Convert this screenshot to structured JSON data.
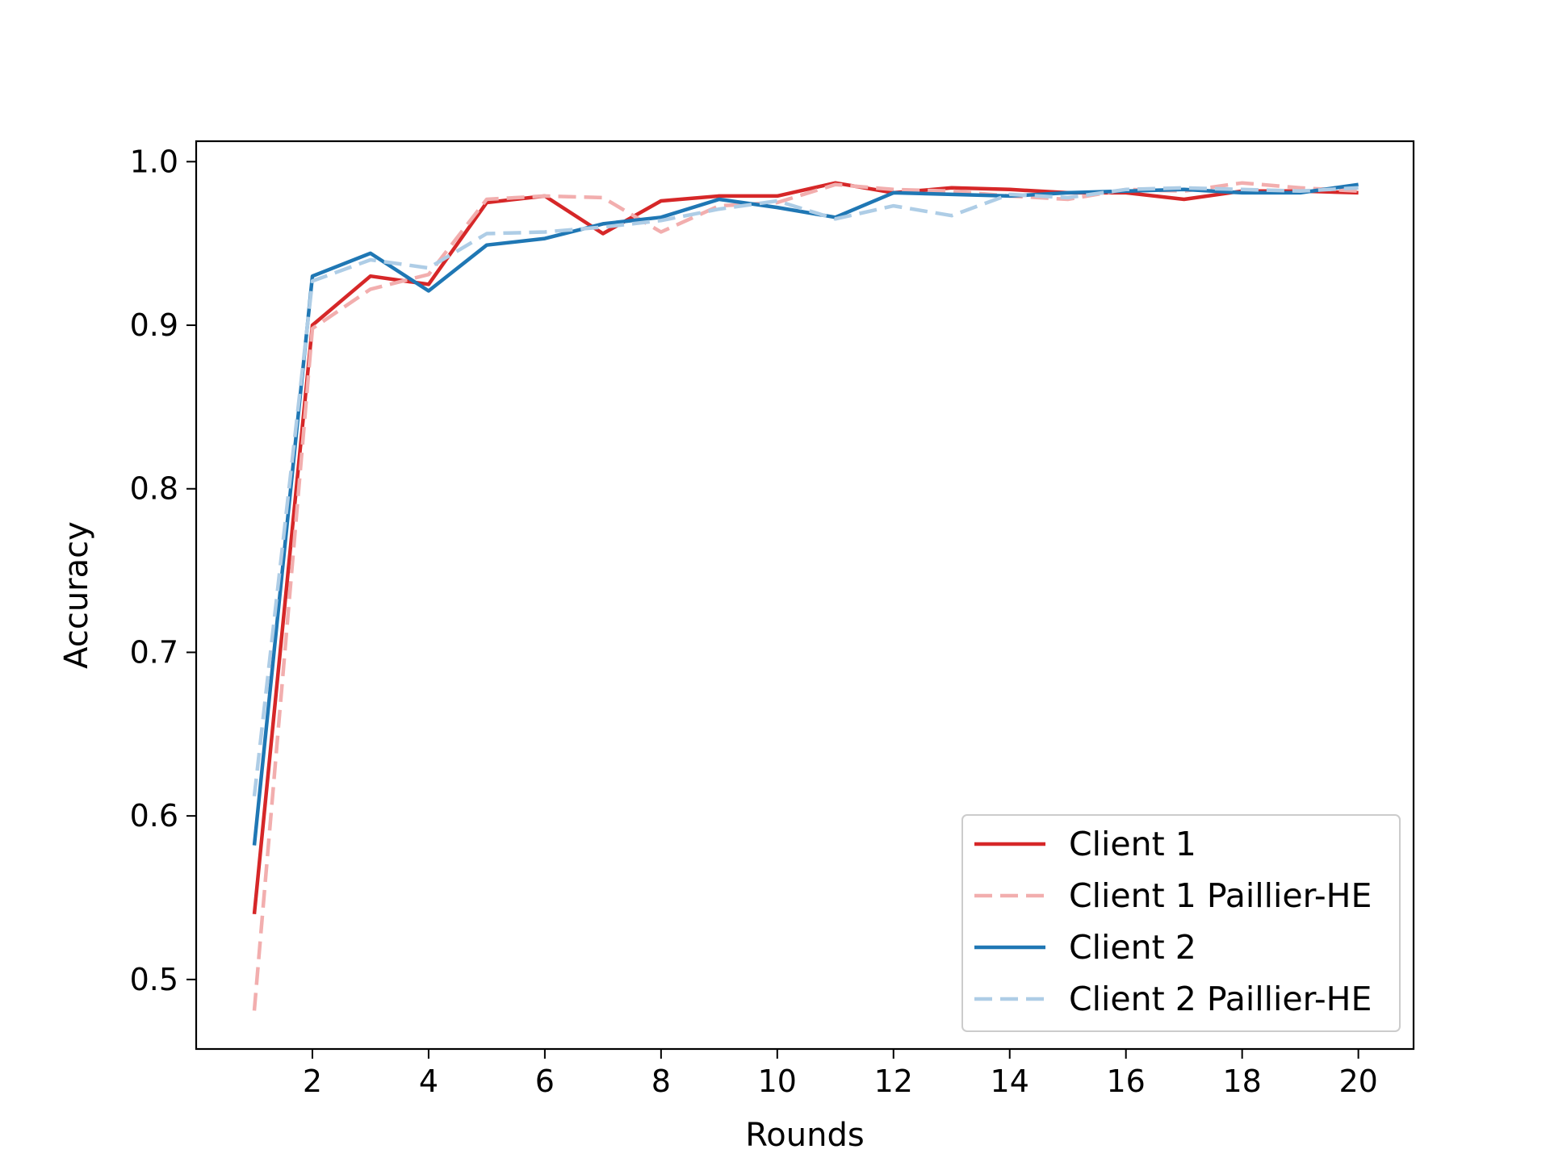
{
  "chart_data": {
    "type": "line",
    "title": "",
    "xlabel": "Rounds",
    "ylabel": "Accuracy",
    "xlim": [
      0.0,
      20.95
    ],
    "ylim": [
      0.4575,
      1.0125
    ],
    "x_ticks": [
      2,
      4,
      6,
      8,
      10,
      12,
      14,
      16,
      18,
      20
    ],
    "x_tick_labels": [
      "2",
      "4",
      "6",
      "8",
      "10",
      "12",
      "14",
      "16",
      "18",
      "20"
    ],
    "y_ticks": [
      0.5,
      0.6,
      0.7,
      0.8,
      0.9,
      1.0
    ],
    "y_tick_labels": [
      "0.5",
      "0.6",
      "0.7",
      "0.8",
      "0.9",
      "1.0"
    ],
    "grid": false,
    "legend_position": "bottom-right",
    "x": [
      1,
      2,
      3,
      4,
      5,
      6,
      7,
      8,
      9,
      10,
      11,
      12,
      13,
      14,
      15,
      16,
      17,
      18,
      19,
      20
    ],
    "series": [
      {
        "name": "Client 1",
        "color": "#d62728",
        "style": "solid",
        "values": [
          0.54,
          0.9,
          0.93,
          0.925,
          0.975,
          0.979,
          0.956,
          0.976,
          0.979,
          0.979,
          0.987,
          0.981,
          0.984,
          0.983,
          0.981,
          0.981,
          0.977,
          0.982,
          0.982,
          0.981
        ]
      },
      {
        "name": "Client 1 Paillier-HE",
        "color": "#f2aeae",
        "style": "dashed",
        "values": [
          0.481,
          0.898,
          0.922,
          0.931,
          0.977,
          0.979,
          0.978,
          0.957,
          0.973,
          0.975,
          0.986,
          0.983,
          0.982,
          0.979,
          0.977,
          0.983,
          0.982,
          0.987,
          0.984,
          0.982
        ]
      },
      {
        "name": "Client 2",
        "color": "#1f77b4",
        "style": "solid",
        "values": [
          0.582,
          0.93,
          0.944,
          0.921,
          0.949,
          0.953,
          0.962,
          0.966,
          0.977,
          0.972,
          0.966,
          0.981,
          0.98,
          0.979,
          0.981,
          0.982,
          0.983,
          0.981,
          0.981,
          0.986
        ]
      },
      {
        "name": "Client 2 Paillier-HE",
        "color": "#aecde6",
        "style": "dashed",
        "values": [
          0.612,
          0.927,
          0.94,
          0.935,
          0.956,
          0.957,
          0.96,
          0.964,
          0.971,
          0.976,
          0.965,
          0.973,
          0.967,
          0.98,
          0.978,
          0.983,
          0.984,
          0.983,
          0.982,
          0.984
        ]
      }
    ]
  }
}
